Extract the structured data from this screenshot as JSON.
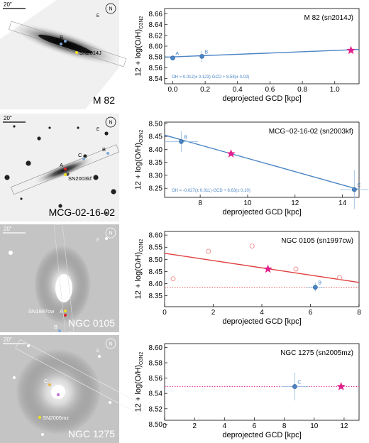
{
  "panels": [
    {
      "image": {
        "label": "M 82",
        "scale_bar": "20\"",
        "compass": {
          "north": "N",
          "east": "E"
        },
        "markers": [
          {
            "label": "B",
            "color": "#7fa9d6"
          },
          {
            "label": "A",
            "color": "#7fa9d6"
          },
          {
            "label": "SN2014J",
            "color": "#f0e020"
          }
        ]
      },
      "chart": {
        "title": "M 82 (sn2014J)",
        "ylabel_main": "12 + log(O/H)",
        "ylabel_sub": "O3N2",
        "xlabel": "deprojected GCD [kpc]",
        "equation": "OH = 0.012(± 0.123)·GCD + 8.58(± 0.02)"
      }
    },
    {
      "image": {
        "label": "MCG-02-16-02",
        "scale_bar": "20\"",
        "compass": {
          "north": "N",
          "east": "E"
        },
        "markers": [
          {
            "label": "A",
            "color": "#d92525"
          },
          {
            "label": "C",
            "color": "#7fa9d6"
          },
          {
            "label": "B",
            "color": "#7fa9d6"
          },
          {
            "label": "SN2003kf",
            "color": "#f0e020"
          }
        ]
      },
      "chart": {
        "title": "MCG−02-16-02 (sn2003kf)",
        "ylabel_main": "12 + log(O/H)",
        "ylabel_sub": "O3N2",
        "xlabel": "deprojected GCD [kpc]",
        "equation": "OH = -0.027(± 0.011)·GCD + 8.63(± 0.10)"
      }
    },
    {
      "image": {
        "label": "NGC 0105",
        "scale_bar": "20\"",
        "compass": {
          "north": "N",
          "east": "E"
        },
        "markers": [
          {
            "label": "SN1997cw",
            "color": "#f0e020"
          },
          {
            "label": "A",
            "color": "#d92525"
          },
          {
            "label": "B",
            "color": "#7fa9d6"
          }
        ]
      },
      "chart": {
        "title": "NGC 0105 (sn1997cw)",
        "ylabel_main": "12 + log(O/H)",
        "ylabel_sub": "O3N2",
        "xlabel": "deprojected GCD [kpc]",
        "equation": ""
      }
    },
    {
      "image": {
        "label": "NGC 1275",
        "scale_bar": "20\"",
        "compass": {
          "north": "N",
          "east": "E"
        },
        "markers": [
          {
            "label": "C",
            "color": "#e8b64a"
          },
          {
            "label": "A",
            "color": "#c070d0"
          },
          {
            "label": "SN2005mz",
            "color": "#f0e020"
          }
        ]
      },
      "chart": {
        "title": "NGC 1275 (sn2005mz)",
        "ylabel_main": "12 + log(O/H)",
        "ylabel_sub": "O3N2",
        "xlabel": "deprojected GCD [kpc]",
        "equation": ""
      }
    }
  ],
  "colors": {
    "blue": "#4a84c4",
    "blue_light": "#9cc0e4",
    "red": "#e04040",
    "magenta": "#e0208c",
    "salmon": "#f08a8a"
  },
  "chart_data": [
    {
      "type": "scatter",
      "title": "M 82 (sn2014J)",
      "xlabel": "deprojected GCD [kpc]",
      "ylabel": "12 + log(O/H)O3N2",
      "xlim": [
        -0.05,
        1.15
      ],
      "ylim": [
        8.53,
        8.67
      ],
      "xticks": [
        "0.0",
        "0.2",
        "0.4",
        "0.6",
        "0.8",
        "1.0"
      ],
      "yticks": [
        "8.54",
        "8.56",
        "8.58",
        "8.60",
        "8.62",
        "8.64",
        "8.66"
      ],
      "points": [
        {
          "label": "A",
          "x": 0.0,
          "y": 8.578,
          "xerr": 0.01,
          "yerr": 0.004
        },
        {
          "label": "B",
          "x": 0.18,
          "y": 8.581,
          "xerr": 0.01,
          "yerr": 0.01
        }
      ],
      "sn": {
        "x": 1.1,
        "y": 8.592
      },
      "fit": {
        "slope": 0.012,
        "intercept": 8.58
      },
      "fit_color": "#4a84c4"
    },
    {
      "type": "scatter",
      "title": "MCG−02-16-02 (sn2003kf)",
      "xlabel": "deprojected GCD [kpc]",
      "ylabel": "12 + log(O/H)O3N2",
      "xlim": [
        6.5,
        14.7
      ],
      "ylim": [
        8.215,
        8.505
      ],
      "xticks": [
        "8",
        "10",
        "12",
        "14"
      ],
      "yticks": [
        "8.25",
        "8.30",
        "8.35",
        "8.40",
        "8.45",
        "8.50"
      ],
      "points": [
        {
          "label": "B",
          "x": 7.2,
          "y": 8.43,
          "xerr": 0.7,
          "yerr": 0.04
        },
        {
          "label": "C",
          "x": 14.5,
          "y": 8.245,
          "xerr": 0.6,
          "yerr": 0.075
        }
      ],
      "sn": {
        "x": 9.3,
        "y": 8.383
      },
      "fit": {
        "x0": 6.5,
        "y0": 8.455,
        "x1": 14.7,
        "y1": 8.245
      },
      "fit_color": "#4a84c4"
    },
    {
      "type": "scatter",
      "title": "NGC 0105 (sn1997cw)",
      "xlabel": "deprojected GCD [kpc]",
      "ylabel": "12 + log(O/H)O3N2",
      "xlim": [
        0,
        8
      ],
      "ylim": [
        8.305,
        8.615
      ],
      "xticks": [
        "0",
        "2",
        "4",
        "6",
        "8"
      ],
      "yticks": [
        "8.35",
        "8.40",
        "8.45",
        "8.50",
        "8.55",
        "8.60"
      ],
      "points": [
        {
          "label": "B",
          "x": 6.2,
          "y": 8.385,
          "xerr": 0.35,
          "yerr": 0.018
        }
      ],
      "open_points": [
        {
          "x": 0.35,
          "y": 8.42
        },
        {
          "x": 1.8,
          "y": 8.533
        },
        {
          "x": 3.6,
          "y": 8.555
        },
        {
          "x": 5.4,
          "y": 8.46
        },
        {
          "x": 7.2,
          "y": 8.425
        }
      ],
      "sn": {
        "x": 4.25,
        "y": 8.46
      },
      "fit": {
        "x0": 0,
        "y0": 8.525,
        "x1": 8,
        "y1": 8.405
      },
      "fit_color": "#e04040",
      "hline": {
        "y": 8.385,
        "color": "#e04040"
      }
    },
    {
      "type": "scatter",
      "title": "NGC 1275 (sn2005mz)",
      "xlabel": "deprojected GCD [kpc]",
      "ylabel": "12 + log(O/H)O3N2",
      "xlim": [
        0,
        13
      ],
      "ylim": [
        8.505,
        8.605
      ],
      "xticks": [
        "0",
        "2",
        "4",
        "6",
        "8",
        "10",
        "12"
      ],
      "yticks": [
        "8.50",
        "8.52",
        "8.54",
        "8.56",
        "8.58",
        "8.60"
      ],
      "points": [
        {
          "label": "C",
          "x": 8.7,
          "y": 8.549,
          "xerr": 0.9,
          "yerr": 0.018
        }
      ],
      "sn": {
        "x": 11.8,
        "y": 8.549
      },
      "hline": {
        "y": 8.549,
        "color": "#e0208c"
      }
    }
  ]
}
